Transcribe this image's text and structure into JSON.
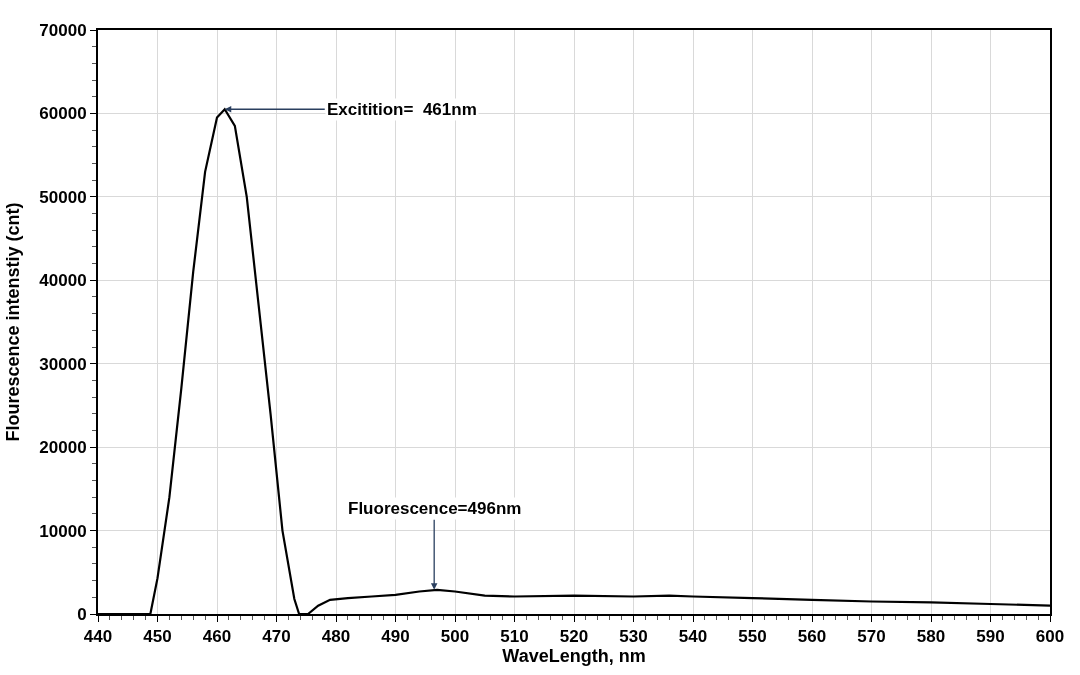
{
  "chart_data": {
    "type": "line",
    "xlabel": "WaveLength, nm",
    "ylabel": "Flourescence intenstiy (cnt)",
    "x": [
      440,
      445,
      448.8,
      450,
      452,
      454,
      456,
      458,
      460,
      461.3,
      463,
      465,
      467,
      469,
      471,
      473,
      473.8,
      475.3,
      477,
      479,
      482,
      486,
      490,
      494,
      497,
      500,
      505,
      510,
      520,
      530,
      536,
      540,
      550,
      560,
      570,
      580,
      590,
      600
    ],
    "series": [
      {
        "color": "#000000",
        "values": [
          0,
          0,
          0,
          4300,
          14000,
          27000,
          41000,
          53000,
          59500,
          60500,
          58500,
          50000,
          37000,
          24000,
          10000,
          1800,
          0,
          0,
          1000,
          1700,
          1900,
          2100,
          2300,
          2700,
          2900,
          2700,
          2200,
          2100,
          2200,
          2100,
          2200,
          2100,
          1900,
          1700,
          1500,
          1400,
          1200,
          1000
        ]
      }
    ],
    "annotations": [
      {
        "text": "Excitition=  461nm",
        "x": 461.3,
        "y": 60500
      },
      {
        "text": "Fluorescence=496nm",
        "x": 496.5,
        "y": 2900
      }
    ],
    "xlim": [
      440,
      600
    ],
    "xticks": [
      440,
      450,
      460,
      470,
      480,
      490,
      500,
      510,
      520,
      530,
      540,
      550,
      560,
      570,
      580,
      590,
      600
    ],
    "ylim": [
      0,
      70000
    ],
    "yticks": [
      0,
      10000,
      20000,
      30000,
      40000,
      50000,
      60000,
      70000
    ],
    "grid": true,
    "marker": "none",
    "line_style": "solid"
  }
}
